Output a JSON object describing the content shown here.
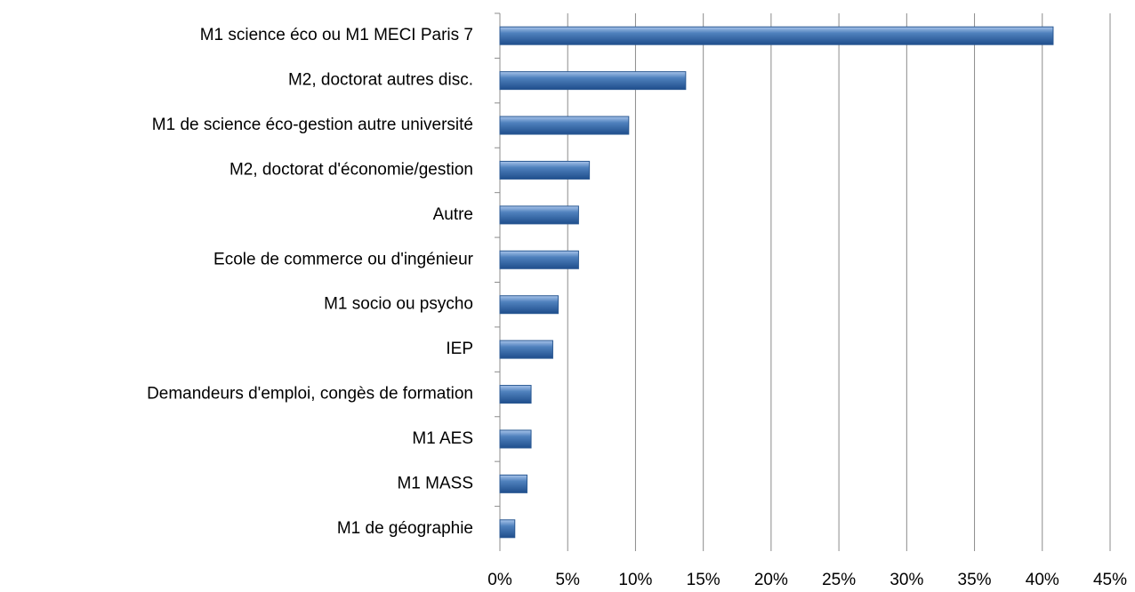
{
  "chart_data": {
    "type": "hbar",
    "categories": [
      "M1 science éco ou M1 MECI Paris 7",
      "M2, doctorat autres disc.",
      "M1 de science éco-gestion autre université",
      "M2, doctorat d'économie/gestion",
      "Autre",
      "Ecole de commerce ou d'ingénieur",
      "M1 socio ou psycho",
      "IEP",
      "Demandeurs d'emploi, congès de formation",
      "M1 AES",
      "M1 MASS",
      "M1 de géographie"
    ],
    "values": [
      40.8,
      13.7,
      9.5,
      6.6,
      5.8,
      5.8,
      4.3,
      3.9,
      2.3,
      2.3,
      2.0,
      1.1
    ],
    "color": "#4f81bd",
    "xlim": [
      0,
      45
    ],
    "xticks": [
      {
        "value": 0,
        "label": "0%"
      },
      {
        "value": 5,
        "label": "5%"
      },
      {
        "value": 10,
        "label": "10%"
      },
      {
        "value": 15,
        "label": "15%"
      },
      {
        "value": 20,
        "label": "20%"
      },
      {
        "value": 25,
        "label": "25%"
      },
      {
        "value": 30,
        "label": "30%"
      },
      {
        "value": 35,
        "label": "35%"
      },
      {
        "value": 40,
        "label": "40%"
      },
      {
        "value": 45,
        "label": "45%"
      }
    ],
    "grid": true
  }
}
